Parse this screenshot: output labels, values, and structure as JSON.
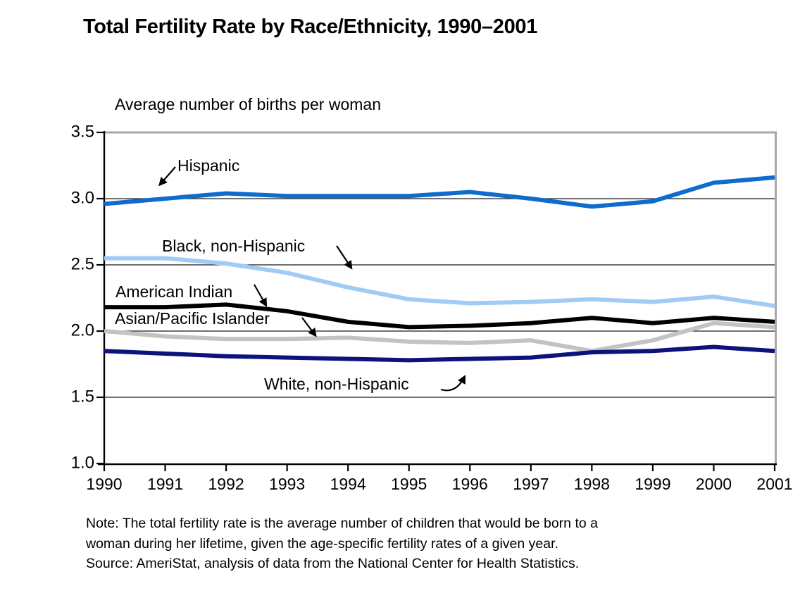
{
  "title": "Total Fertility Rate by Race/Ethnicity, 1990–2001",
  "chart_data": {
    "type": "line",
    "title": "Total Fertility Rate by Race/Ethnicity, 1990–2001",
    "ylabel": "Average number of births per woman",
    "xlabel": "",
    "x": [
      1990,
      1991,
      1992,
      1993,
      1994,
      1995,
      1996,
      1997,
      1998,
      1999,
      2000,
      2001
    ],
    "ylim": [
      1.0,
      3.5
    ],
    "yticks": [
      1.0,
      1.5,
      2.0,
      2.5,
      3.0,
      3.5
    ],
    "grid": true,
    "legend_position": "inline-annotations",
    "series": [
      {
        "name": "Hispanic",
        "color": "#0E6DCC",
        "values": [
          2.96,
          3.0,
          3.04,
          3.02,
          3.02,
          3.02,
          3.05,
          3.0,
          2.94,
          2.98,
          3.12,
          3.16
        ]
      },
      {
        "name": "Black, non-Hispanic",
        "color": "#A0CCF4",
        "values": [
          2.55,
          2.55,
          2.51,
          2.44,
          2.33,
          2.24,
          2.21,
          2.22,
          2.24,
          2.22,
          2.26,
          2.19
        ]
      },
      {
        "name": "American Indian",
        "color": "#000000",
        "values": [
          2.18,
          2.18,
          2.2,
          2.15,
          2.07,
          2.03,
          2.04,
          2.06,
          2.1,
          2.06,
          2.1,
          2.07
        ]
      },
      {
        "name": "Asian/Pacific Islander",
        "color": "#C3C3C3",
        "values": [
          2.0,
          1.96,
          1.94,
          1.94,
          1.95,
          1.92,
          1.91,
          1.93,
          1.85,
          1.93,
          2.06,
          2.03
        ]
      },
      {
        "name": "White, non-Hispanic",
        "color": "#0D127D",
        "values": [
          1.85,
          1.83,
          1.81,
          1.8,
          1.79,
          1.78,
          1.79,
          1.8,
          1.84,
          1.85,
          1.88,
          1.85
        ]
      }
    ]
  },
  "note": {
    "lines": [
      "Note: The total fertility rate is the average number of children that would be born to a",
      "woman during her lifetime, given the age-specific fertility rates of a given year.",
      "Source: AmeriStat, analysis of data from the National Center for Health Statistics."
    ]
  }
}
